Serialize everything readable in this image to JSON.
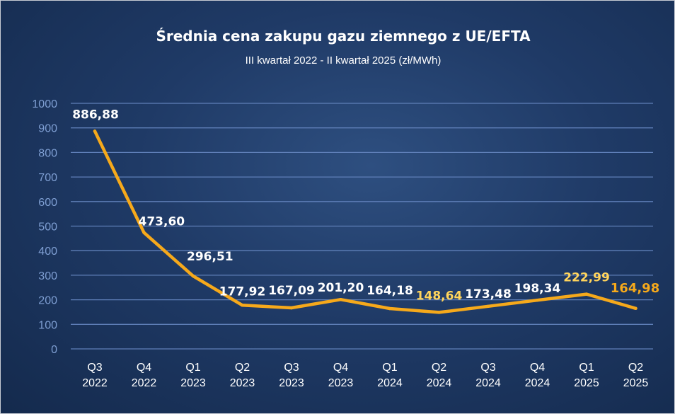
{
  "chart_data": {
    "type": "line",
    "title": "Średnia cena zakupu gazu ziemnego z UE/EFTA",
    "subtitle": "III kwartał 2022 - II kwartał 2025 (zł/MWh)",
    "categories": [
      [
        "Q3",
        "2022"
      ],
      [
        "Q4",
        "2022"
      ],
      [
        "Q1",
        "2023"
      ],
      [
        "Q2",
        "2023"
      ],
      [
        "Q3",
        "2023"
      ],
      [
        "Q4",
        "2023"
      ],
      [
        "Q1",
        "2024"
      ],
      [
        "Q2",
        "2024"
      ],
      [
        "Q3",
        "2024"
      ],
      [
        "Q4",
        "2024"
      ],
      [
        "Q1",
        "2025"
      ],
      [
        "Q2",
        "2025"
      ]
    ],
    "values": [
      886.88,
      473.6,
      296.51,
      177.92,
      167.09,
      201.2,
      164.18,
      148.64,
      173.48,
      198.34,
      222.99,
      164.98
    ],
    "data_labels": [
      "886,88",
      "473,60",
      "296,51",
      "177,92",
      "167,09",
      "201,20",
      "164,18",
      "148,64",
      "173,48",
      "198,34",
      "222,99",
      "164,98"
    ],
    "highlighted_labels": [
      7,
      10,
      11
    ],
    "ylim": [
      0,
      1000
    ],
    "yticks": [
      0,
      100,
      200,
      300,
      400,
      500,
      600,
      700,
      800,
      900,
      1000
    ],
    "grid": true,
    "colors": {
      "line": "#f6a91b",
      "label": "#ffffff",
      "label_highlight": "#ffd45c",
      "last_label": "#f6a91b",
      "grid": "#5f7fb8",
      "axis_text": "#7f9fd3"
    }
  }
}
